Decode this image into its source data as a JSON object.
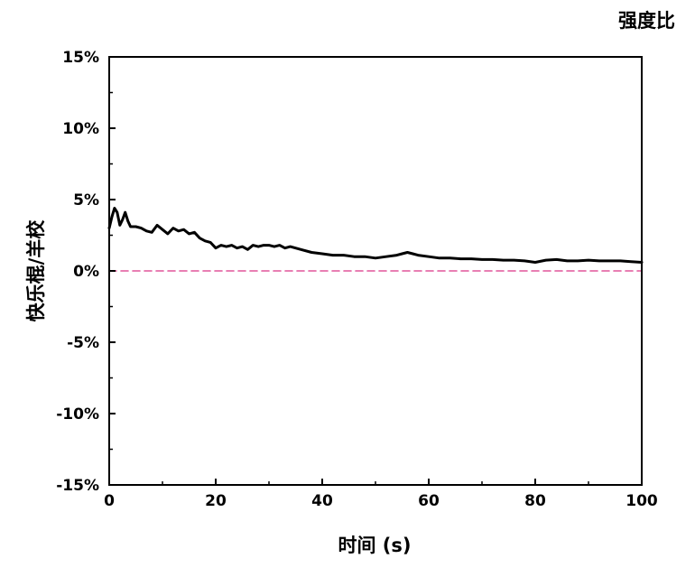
{
  "chart_data": {
    "type": "line",
    "title": "强度比",
    "xlabel": "时间 (s)",
    "ylabel": "快乐棍/羊校",
    "xlim": [
      0,
      100
    ],
    "ylim": [
      -15,
      15
    ],
    "x_ticks": [
      "0",
      "20",
      "40",
      "60",
      "80",
      "100"
    ],
    "y_ticks": [
      "15%",
      "10%",
      "5%",
      "0%",
      "-5%",
      "-10%",
      "-15%"
    ],
    "y_tick_values": [
      15,
      10,
      5,
      0,
      -5,
      -10,
      -15
    ],
    "x_tick_values": [
      0,
      20,
      40,
      60,
      80,
      100
    ],
    "grid": false,
    "series": [
      {
        "color": "#000000",
        "style": "solid",
        "x": [
          0,
          0.5,
          1,
          1.5,
          2,
          2.5,
          3,
          3.5,
          4,
          5,
          6,
          7,
          8,
          9,
          10,
          11,
          12,
          13,
          14,
          15,
          16,
          17,
          18,
          19,
          20,
          21,
          22,
          23,
          24,
          25,
          26,
          27,
          28,
          29,
          30,
          31,
          32,
          33,
          34,
          35,
          36,
          38,
          40,
          42,
          44,
          46,
          48,
          50,
          52,
          54,
          55,
          56,
          57,
          58,
          60,
          62,
          64,
          66,
          68,
          70,
          72,
          74,
          76,
          78,
          80,
          82,
          84,
          86,
          88,
          90,
          92,
          94,
          96,
          98,
          100
        ],
        "y": [
          3.0,
          3.8,
          4.4,
          4.1,
          3.2,
          3.6,
          4.1,
          3.5,
          3.1,
          3.1,
          3.0,
          2.8,
          2.7,
          3.2,
          2.9,
          2.6,
          3.0,
          2.8,
          2.9,
          2.6,
          2.7,
          2.3,
          2.1,
          2.0,
          1.6,
          1.8,
          1.7,
          1.8,
          1.6,
          1.7,
          1.5,
          1.8,
          1.7,
          1.8,
          1.8,
          1.7,
          1.8,
          1.6,
          1.7,
          1.6,
          1.5,
          1.3,
          1.2,
          1.1,
          1.1,
          1.0,
          1.0,
          0.9,
          1.0,
          1.1,
          1.2,
          1.3,
          1.2,
          1.1,
          1.0,
          0.9,
          0.9,
          0.85,
          0.85,
          0.8,
          0.8,
          0.75,
          0.75,
          0.7,
          0.6,
          0.75,
          0.8,
          0.7,
          0.7,
          0.75,
          0.7,
          0.7,
          0.7,
          0.65,
          0.6
        ]
      },
      {
        "color": "#e0559a",
        "style": "dashed",
        "x": [
          0,
          100
        ],
        "y": [
          0,
          0
        ]
      }
    ]
  }
}
